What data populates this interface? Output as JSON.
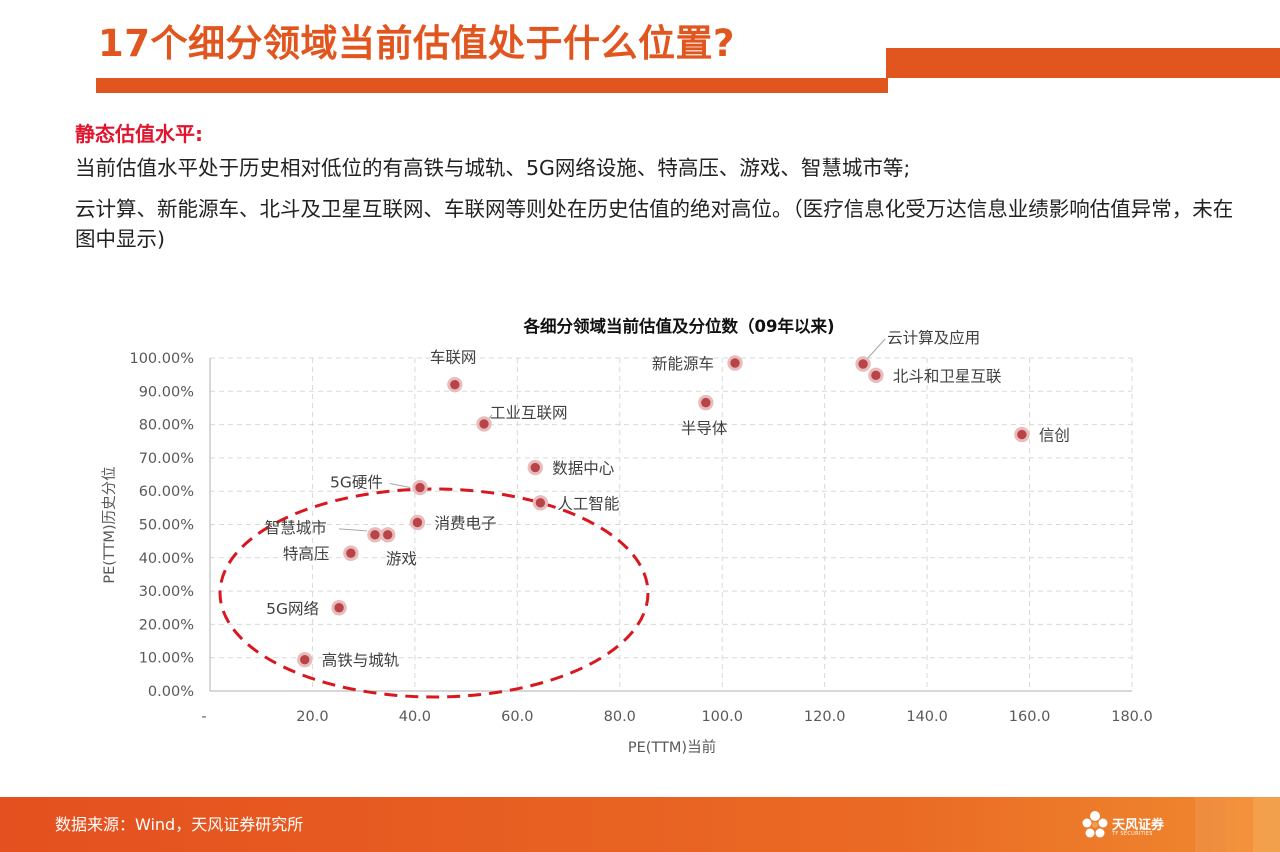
{
  "header": {
    "title": "17个细分领域当前估值处于什么位置?"
  },
  "summary": {
    "heading": "静态估值水平:",
    "line1": "当前估值水平处于历史相对低位的有高铁与城轨、5G网络设施、特高压、游戏、智慧城市等;",
    "line2": "云计算、新能源车、北斗及卫星互联网、车联网等则处在历史估值的绝对高位。（医疗信息化受万达信息业绩影响估值异常，未在图中显示)"
  },
  "colors": {
    "accent": "#e1551e",
    "heading_red": "#e0152e",
    "point_fill": "#b84447",
    "ellipse": "#d8171e"
  },
  "chart_data": {
    "type": "scatter",
    "title": "各细分领域当前估值及分位数（09年以来)",
    "xlabel": "PE(TTM)当前",
    "ylabel": "PE(TTM)历史分位",
    "xlim": [
      0,
      180
    ],
    "ylim": [
      0,
      1.0
    ],
    "x_ticks": [
      "-",
      "20.0",
      "40.0",
      "60.0",
      "80.0",
      "100.0",
      "120.0",
      "140.0",
      "160.0",
      "180.0"
    ],
    "y_ticks": [
      "0.00%",
      "10.00%",
      "20.00%",
      "30.00%",
      "40.00%",
      "50.00%",
      "60.00%",
      "70.00%",
      "80.00%",
      "90.00%",
      "100.00%"
    ],
    "grid": true,
    "points": [
      {
        "label": "车联网",
        "x": 47.8,
        "y": 0.92
      },
      {
        "label": "工业互联网",
        "x": 53.5,
        "y": 0.802
      },
      {
        "label": "新能源车",
        "x": 102.5,
        "y": 0.985
      },
      {
        "label": "半导体",
        "x": 96.8,
        "y": 0.866
      },
      {
        "label": "云计算及应用",
        "x": 127.5,
        "y": 0.982
      },
      {
        "label": "北斗和卫星互联",
        "x": 130.0,
        "y": 0.948
      },
      {
        "label": "信创",
        "x": 158.5,
        "y": 0.77
      },
      {
        "label": "数据中心",
        "x": 63.5,
        "y": 0.671
      },
      {
        "label": "人工智能",
        "x": 64.5,
        "y": 0.565
      },
      {
        "label": "5G硬件",
        "x": 41.0,
        "y": 0.611
      },
      {
        "label": "消费电子",
        "x": 40.5,
        "y": 0.506
      },
      {
        "label": "智慧城市",
        "x": 34.7,
        "y": 0.469
      },
      {
        "label": "",
        "x": 32.2,
        "y": 0.469
      },
      {
        "label": "特高压",
        "x": 27.5,
        "y": 0.414
      },
      {
        "label": "游戏",
        "x": 27.5,
        "y": 0.414
      },
      {
        "label": "5G网络",
        "x": 25.2,
        "y": 0.25
      },
      {
        "label": "高铁与城轨",
        "x": 18.5,
        "y": 0.094
      }
    ]
  },
  "footer": {
    "source": "数据来源：Wind，天风证券研究所",
    "logo_text": "天风证券",
    "logo_sub": "TF SECURITIES"
  }
}
